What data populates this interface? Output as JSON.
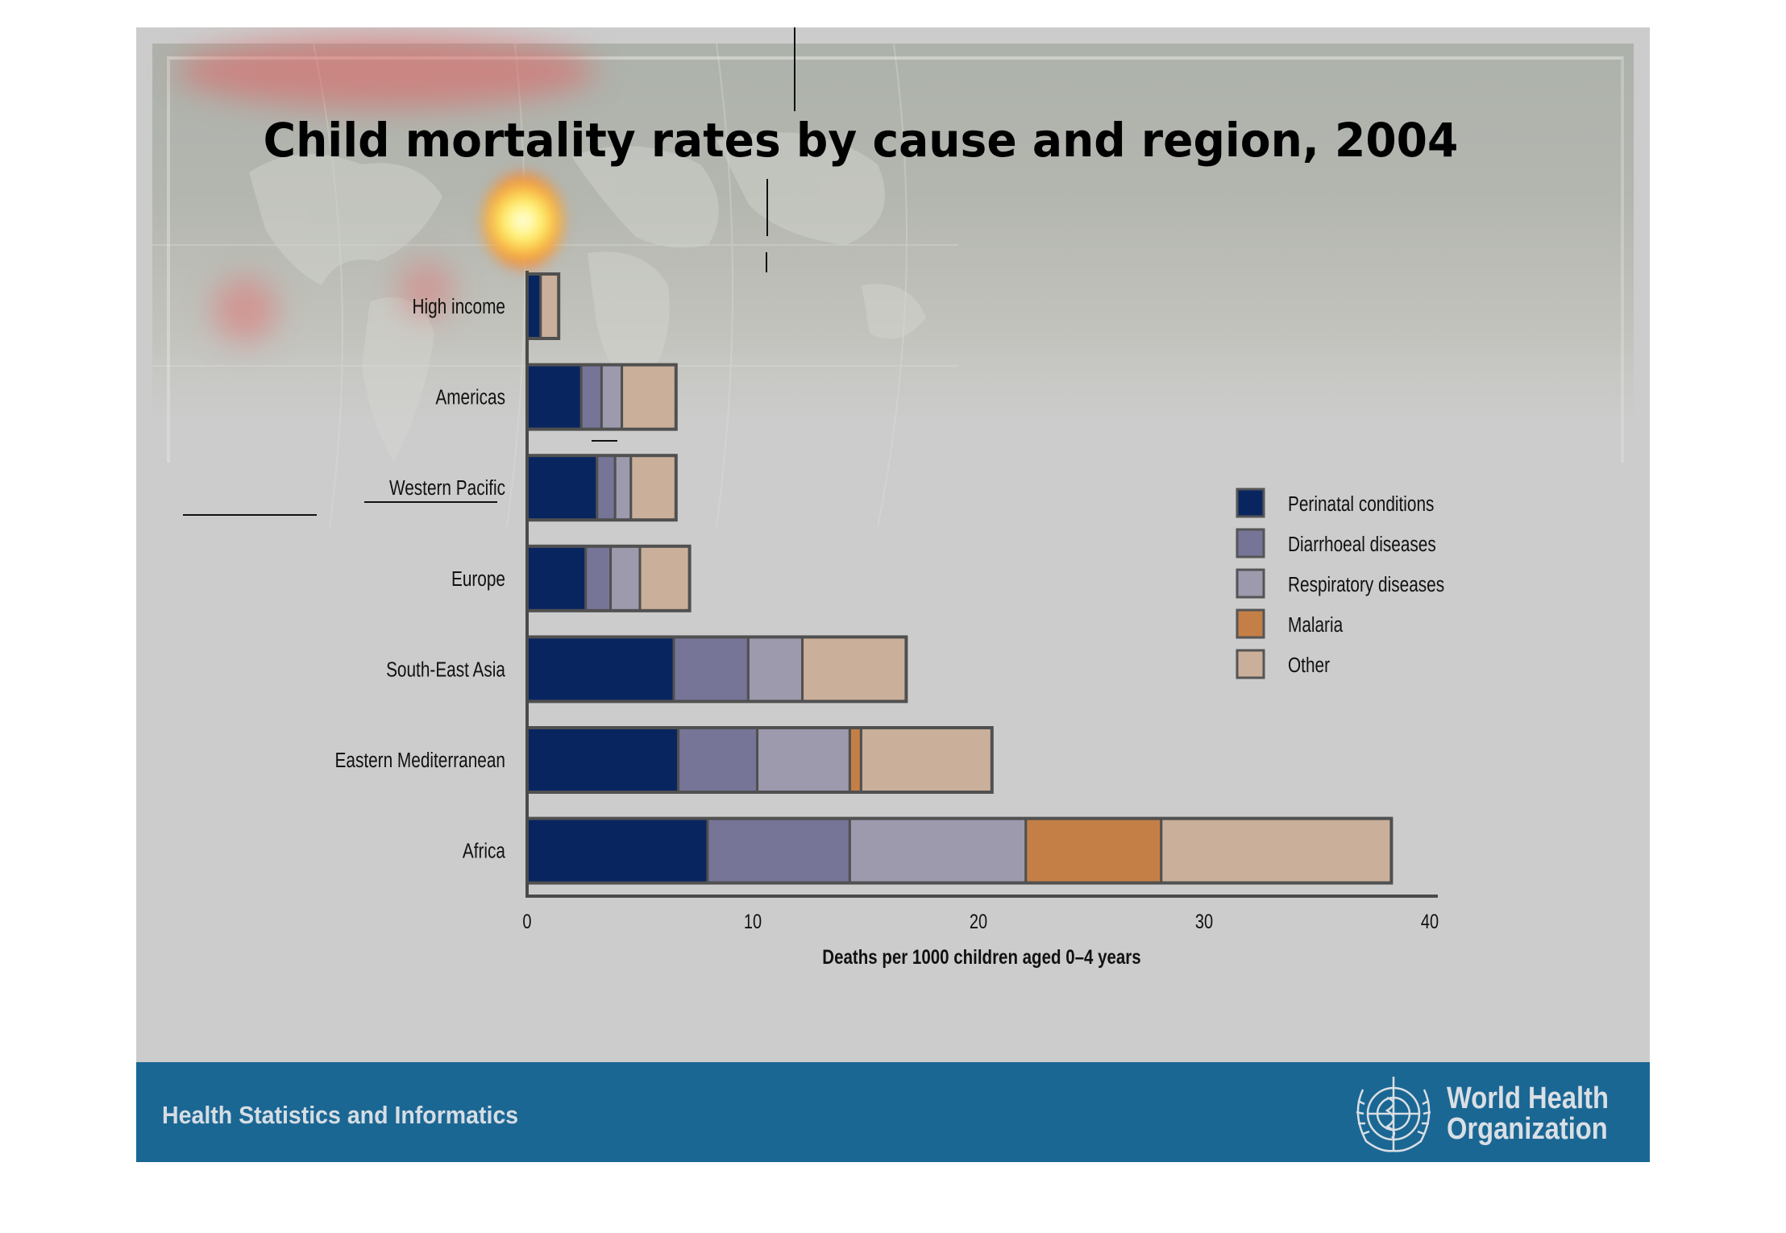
{
  "slide": {
    "title": "Child mortality rates by cause and region, 2004",
    "footer_left": "Health Statistics and Informatics",
    "footer_logo_line1": "World Health",
    "footer_logo_line2": "Organization",
    "footer_color": "#1b6794"
  },
  "chart_data": {
    "type": "bar",
    "orientation": "horizontal",
    "stacked": true,
    "title": "Child mortality rates by cause and region, 2004",
    "xlabel": "Deaths per 1000 children aged 0–4 years",
    "ylabel": "",
    "xlim": [
      0,
      40
    ],
    "xticks": [
      0,
      10,
      20,
      30,
      40
    ],
    "xtick_labels": [
      "0",
      "10",
      "20",
      "30",
      "40"
    ],
    "grid": false,
    "legend_position": "right",
    "categories": [
      "High income",
      "Americas",
      "Western Pacific",
      "Europe",
      "South-East Asia",
      "Eastern Mediterranean",
      "Africa"
    ],
    "series": [
      {
        "name": "Perinatal conditions",
        "color": "#08255f",
        "values": [
          0.6,
          2.4,
          3.1,
          2.6,
          6.5,
          6.7,
          8.0
        ]
      },
      {
        "name": "Diarrhoeal diseases",
        "color": "#767598",
        "values": [
          0.0,
          0.9,
          0.8,
          1.1,
          3.3,
          3.5,
          6.3
        ]
      },
      {
        "name": "Respiratory diseases",
        "color": "#9d9aae",
        "values": [
          0.0,
          0.9,
          0.7,
          1.3,
          2.4,
          4.1,
          7.8
        ]
      },
      {
        "name": "Malaria",
        "color": "#c47f46",
        "values": [
          0.0,
          0.0,
          0.0,
          0.0,
          0.0,
          0.5,
          6.0
        ]
      },
      {
        "name": "Other",
        "color": "#cab09a",
        "values": [
          0.8,
          2.4,
          2.0,
          2.2,
          4.6,
          5.8,
          10.2
        ]
      }
    ]
  }
}
